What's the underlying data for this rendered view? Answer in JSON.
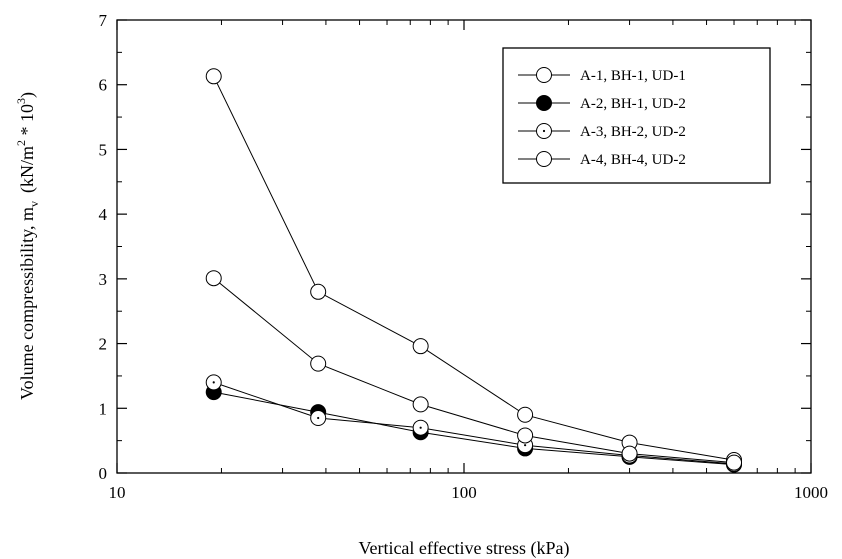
{
  "chart_data": {
    "type": "scatter",
    "xlabel": "Vertical effective stress (kPa)",
    "ylabel": {
      "main": "Volume compressibility, m",
      "subscript": "v",
      "units_open": "(kN/m",
      "units_sup1": "2",
      "units_mid": " * 10",
      "units_sup2": "3",
      "units_close": ")"
    },
    "xscale": "log",
    "xlim": [
      10,
      1000
    ],
    "ylim": [
      0,
      7
    ],
    "x_ticks": [
      {
        "value": 10,
        "label": "10"
      },
      {
        "value": 100,
        "label": "100"
      },
      {
        "value": 1000,
        "label": "1000"
      }
    ],
    "y_ticks": [
      {
        "value": 0,
        "label": "0"
      },
      {
        "value": 1,
        "label": "1"
      },
      {
        "value": 2,
        "label": "2"
      },
      {
        "value": 3,
        "label": "3"
      },
      {
        "value": 4,
        "label": "4"
      },
      {
        "value": 5,
        "label": "5"
      },
      {
        "value": 6,
        "label": "6"
      },
      {
        "value": 7,
        "label": "7"
      }
    ],
    "legend_position": "top-right",
    "series": [
      {
        "name": "A-1, BH-1, UD-1",
        "marker": "open-circle",
        "x": [
          19,
          38,
          75,
          150,
          300,
          600
        ],
        "y": [
          6.13,
          2.8,
          1.96,
          0.9,
          0.47,
          0.2
        ]
      },
      {
        "name": "A-2, BH-1, UD-2",
        "marker": "filled-circle",
        "x": [
          19,
          38,
          75,
          150,
          300,
          600
        ],
        "y": [
          1.25,
          0.94,
          0.63,
          0.38,
          0.25,
          0.13
        ]
      },
      {
        "name": "A-3, BH-2, UD-2",
        "marker": "dotted-circle",
        "x": [
          19,
          38,
          75,
          150,
          300,
          600
        ],
        "y": [
          1.4,
          0.85,
          0.7,
          0.43,
          0.27,
          0.14
        ]
      },
      {
        "name": "A-4, BH-4, UD-2",
        "marker": "open-circle",
        "x": [
          19,
          38,
          75,
          150,
          300,
          600
        ],
        "y": [
          3.01,
          1.69,
          1.06,
          0.58,
          0.3,
          0.16
        ]
      }
    ]
  }
}
